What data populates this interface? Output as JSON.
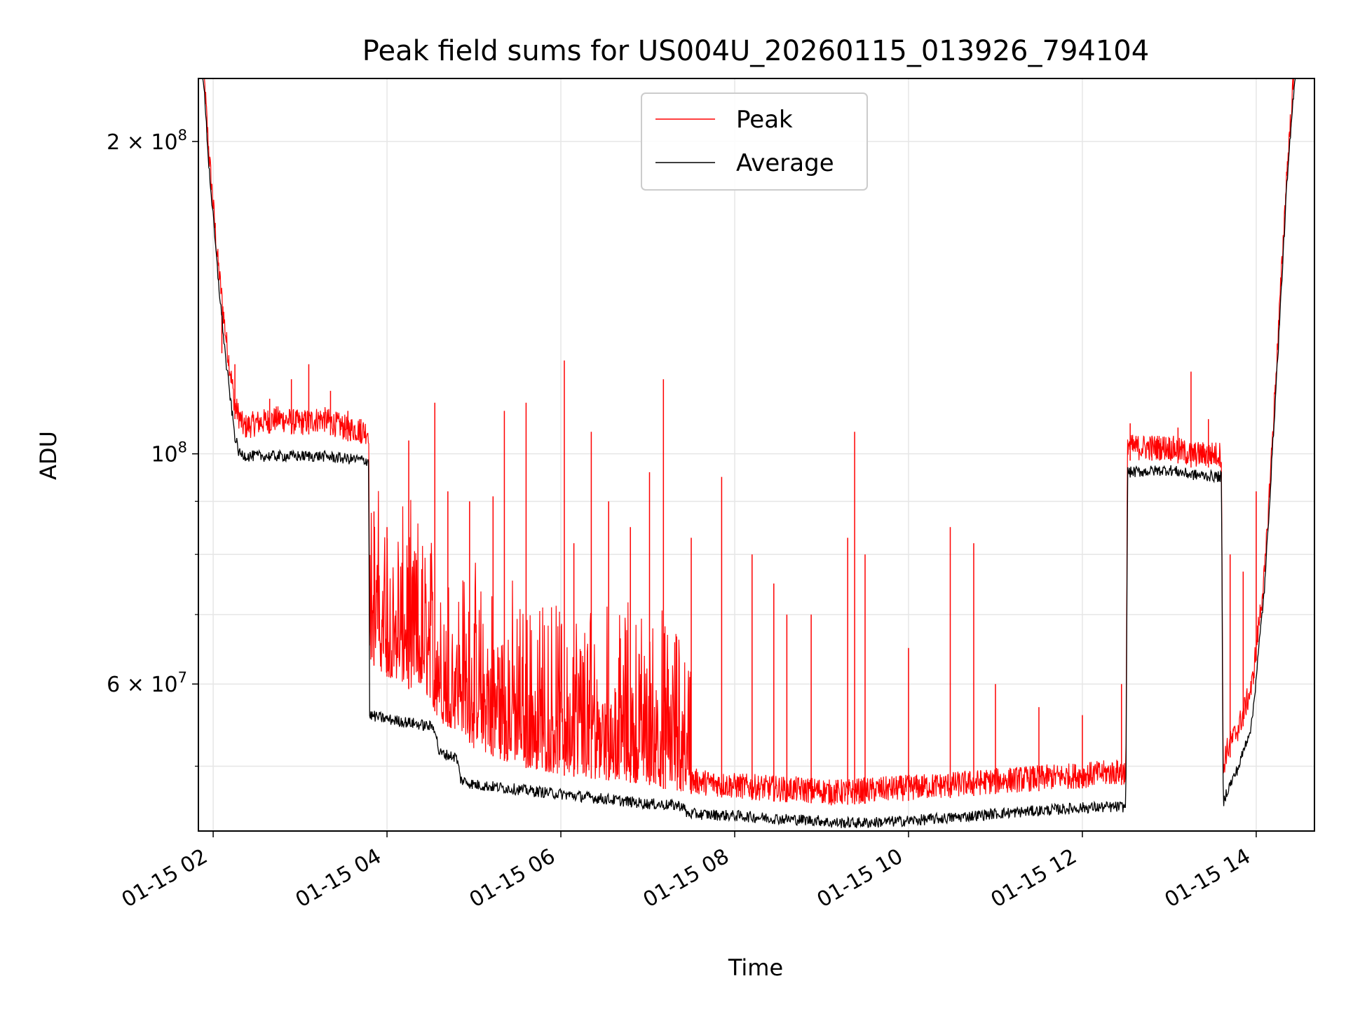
{
  "chart_data": {
    "type": "line",
    "title": "Peak field sums for US004U_20260115_013926_794104",
    "xlabel": "Time",
    "ylabel": "ADU",
    "x_axis": {
      "scale": "time",
      "range_hours": [
        1.83,
        14.67
      ],
      "tick_values_hours": [
        2,
        4,
        6,
        8,
        10,
        12,
        14
      ],
      "tick_labels": [
        "01-15 02",
        "01-15 04",
        "01-15 06",
        "01-15 08",
        "01-15 10",
        "01-15 12",
        "01-15 14"
      ]
    },
    "y_axis": {
      "scale": "log",
      "range": [
        43300000,
        230000000
      ],
      "major_ticks": [
        60000000,
        100000000,
        200000000
      ],
      "major_tick_labels": [
        {
          "base": "6 × 10",
          "exp": "7"
        },
        {
          "base": "10",
          "exp": "8"
        },
        {
          "base": "2 × 10",
          "exp": "8"
        }
      ],
      "minor_ticks": [
        50000000,
        70000000,
        80000000,
        90000000
      ]
    },
    "grid": true,
    "legend_position": "top-center",
    "series": [
      {
        "name": "Peak",
        "color": "#ff0000",
        "x_hours": [
          1.88,
          1.95,
          2.05,
          2.15,
          2.25,
          2.35,
          2.5,
          2.75,
          3.0,
          3.25,
          3.5,
          3.79,
          3.8,
          4.0,
          4.3,
          4.5,
          4.6,
          4.85,
          5.0,
          5.5,
          6.0,
          6.5,
          7.0,
          7.4,
          7.5,
          8.0,
          8.5,
          9.0,
          9.1,
          9.5,
          10.0,
          10.5,
          11.0,
          11.5,
          12.0,
          12.5,
          12.52,
          12.55,
          13.0,
          13.25,
          13.6,
          13.62,
          13.65,
          13.8,
          13.95,
          14.1,
          14.25,
          14.35,
          14.45
        ],
        "values": [
          235000000,
          190000000,
          150000000,
          125000000,
          108000000,
          103000000,
          104000000,
          105000000,
          104000000,
          105000000,
          103000000,
          102000000,
          63000000,
          61000000,
          59000000,
          58000000,
          55000000,
          54000000,
          52000000,
          50000000,
          49000000,
          48500000,
          48000000,
          47000000,
          47000000,
          46500000,
          46200000,
          46000000,
          45800000,
          46000000,
          46300000,
          46600000,
          47000000,
          47300000,
          47600000,
          48000000,
          100000000,
          98500000,
          98500000,
          97000000,
          97000000,
          48000000,
          50000000,
          53000000,
          58000000,
          75000000,
          125000000,
          180000000,
          235000000
        ],
        "spikes": [
          [
            2.1,
            125000000
          ],
          [
            2.25,
            122000000
          ],
          [
            2.65,
            113000000
          ],
          [
            2.9,
            118000000
          ],
          [
            3.1,
            122000000
          ],
          [
            3.35,
            115000000
          ],
          [
            3.55,
            110000000
          ],
          [
            3.7,
            108000000
          ],
          [
            3.85,
            88000000
          ],
          [
            4.0,
            85000000
          ],
          [
            4.25,
            103000000
          ],
          [
            4.55,
            112000000
          ],
          [
            4.7,
            92000000
          ],
          [
            4.95,
            90000000
          ],
          [
            5.22,
            91000000
          ],
          [
            5.35,
            110000000
          ],
          [
            5.6,
            112000000
          ],
          [
            6.04,
            123000000
          ],
          [
            6.15,
            82000000
          ],
          [
            6.35,
            105000000
          ],
          [
            6.55,
            90000000
          ],
          [
            6.8,
            85000000
          ],
          [
            7.02,
            96000000
          ],
          [
            7.18,
            118000000
          ],
          [
            7.5,
            83000000
          ],
          [
            7.85,
            95000000
          ],
          [
            8.2,
            80000000
          ],
          [
            8.45,
            75000000
          ],
          [
            8.6,
            70000000
          ],
          [
            8.88,
            70000000
          ],
          [
            9.3,
            83000000
          ],
          [
            9.38,
            105000000
          ],
          [
            9.5,
            80000000
          ],
          [
            10.0,
            65000000
          ],
          [
            10.48,
            85000000
          ],
          [
            10.75,
            82000000
          ],
          [
            11.0,
            60000000
          ],
          [
            11.5,
            57000000
          ],
          [
            12.0,
            56000000
          ],
          [
            12.45,
            60000000
          ],
          [
            12.55,
            107000000
          ],
          [
            12.8,
            104000000
          ],
          [
            13.1,
            106000000
          ],
          [
            13.25,
            120000000
          ],
          [
            13.45,
            108000000
          ],
          [
            13.7,
            80000000
          ],
          [
            13.85,
            77000000
          ],
          [
            14.0,
            92000000
          ]
        ]
      },
      {
        "name": "Average",
        "color": "#000000",
        "x_hours": [
          1.88,
          1.95,
          2.05,
          2.15,
          2.25,
          2.3,
          2.4,
          2.75,
          3.0,
          3.25,
          3.5,
          3.79,
          3.8,
          4.0,
          4.3,
          4.55,
          4.6,
          4.8,
          4.85,
          5.0,
          5.5,
          6.0,
          6.5,
          7.0,
          7.4,
          7.45,
          8.0,
          8.5,
          9.0,
          9.1,
          9.5,
          10.0,
          10.5,
          11.0,
          11.5,
          12.0,
          12.5,
          12.52,
          12.55,
          13.0,
          13.25,
          13.6,
          13.62,
          13.65,
          13.8,
          13.95,
          14.1,
          14.25,
          14.35,
          14.45
        ],
        "values": [
          235000000,
          190000000,
          150000000,
          122000000,
          104000000,
          100000000,
          99500000,
          99500000,
          99500000,
          99500000,
          99000000,
          98500000,
          56000000,
          55500000,
          55000000,
          54500000,
          51500000,
          51000000,
          48500000,
          48000000,
          47500000,
          47000000,
          46500000,
          46000000,
          45800000,
          45000000,
          44800000,
          44500000,
          44300000,
          44100000,
          44100000,
          44300000,
          44600000,
          45000000,
          45300000,
          45600000,
          45700000,
          96000000,
          96000000,
          96500000,
          95500000,
          95000000,
          46000000,
          47000000,
          50000000,
          55000000,
          75000000,
          125000000,
          180000000,
          235000000
        ]
      }
    ]
  }
}
